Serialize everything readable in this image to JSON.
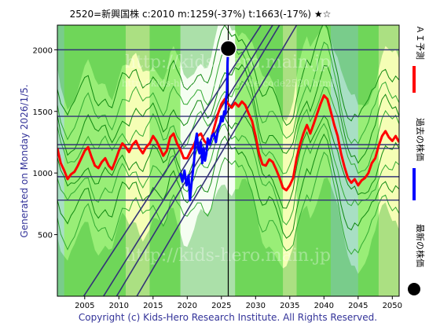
{
  "header": {
    "title": "2520=新興国株    c:2010   m:1259(-37%)   t:1663(-17%)   ★☆"
  },
  "side_caption": "Generated on Monday 2026/1/5.",
  "footer": "Copyright (c) Kids-Hero Research Institute. All Rights Reserved.",
  "watermarks": [
    "http://kids-hero.main.jp",
    "http://kids-hero.main.jp/code/code2520.html",
    "http://kids-hero.main.jp"
  ],
  "legend": [
    {
      "label": "ＡＩ予測",
      "color": "#ff0000",
      "kind": "line"
    },
    {
      "label": "過去の株価",
      "color": "#0000ff",
      "kind": "line"
    },
    {
      "label": "最新の株価",
      "color": "#000000",
      "kind": "dot"
    }
  ],
  "chart_data": {
    "type": "line",
    "x_ticks": [
      2005,
      2010,
      2015,
      2020,
      2025,
      2030,
      2035,
      2040,
      2045,
      2050
    ],
    "y_ticks": [
      500,
      1000,
      1500,
      2000
    ],
    "xlim": [
      2001,
      2051
    ],
    "ylim": [
      0,
      2200
    ],
    "colors": {
      "background": "#99ee77",
      "band_dark": "#22aa22",
      "band_yellow": "#ffffbb",
      "band_teal": "#aaddcc",
      "band_white": "#ffffff",
      "diag_line": "#333377",
      "hline": "#333377"
    },
    "horizontal_lines": [
      2000,
      1460,
      1230,
      1200,
      970,
      780
    ],
    "diagonal_lines": [
      {
        "x1": 2002.5,
        "y1": -200,
        "x2": 2030.8,
        "y2": 2200
      },
      {
        "x1": 2005.5,
        "y1": -200,
        "x2": 2032.5,
        "y2": 2200
      },
      {
        "x1": 2007.5,
        "y1": -200,
        "x2": 2033.5,
        "y2": 2200
      },
      {
        "x1": 2010.5,
        "y1": -200,
        "x2": 2036.0,
        "y2": 2200
      }
    ],
    "vertical_line_x": 2026.0,
    "latest": {
      "x": 2026.0,
      "y": 2010
    },
    "highlight_bands": [
      {
        "from": 2001,
        "to": 2002,
        "kind": "teal"
      },
      {
        "from": 2011,
        "to": 2014.5,
        "kind": "yellow"
      },
      {
        "from": 2019,
        "to": 2027,
        "kind": "white"
      },
      {
        "from": 2034,
        "to": 2036,
        "kind": "yellow"
      },
      {
        "from": 2041,
        "to": 2045,
        "kind": "teal"
      },
      {
        "from": 2048,
        "to": 2051,
        "kind": "yellow"
      }
    ],
    "series": [
      {
        "role": "ai_forecast",
        "color": "#ff0000",
        "x": [
          2001.0,
          2001.5,
          2002.0,
          2002.5,
          2003.0,
          2003.5,
          2004.0,
          2004.5,
          2005.0,
          2005.5,
          2006.0,
          2006.5,
          2007.0,
          2007.5,
          2008.0,
          2008.5,
          2009.0,
          2009.5,
          2010.0,
          2010.5,
          2011.0,
          2011.5,
          2012.0,
          2012.5,
          2013.0,
          2013.5,
          2014.0,
          2014.5,
          2015.0,
          2015.5,
          2016.0,
          2016.5,
          2017.0,
          2017.5,
          2018.0,
          2018.5,
          2019.0,
          2019.5,
          2020.0,
          2020.5,
          2021.0,
          2021.5,
          2022.0,
          2022.5,
          2023.0,
          2023.5,
          2024.0,
          2024.5,
          2025.0,
          2025.5,
          2026.0,
          2026.5,
          2027.0,
          2027.5,
          2028.0,
          2028.5,
          2029.0,
          2029.5,
          2030.0,
          2030.5,
          2031.0,
          2031.5,
          2032.0,
          2032.5,
          2033.0,
          2033.5,
          2034.0,
          2034.5,
          2035.0,
          2035.5,
          2036.0,
          2036.5,
          2037.0,
          2037.5,
          2038.0,
          2038.5,
          2039.0,
          2039.5,
          2040.0,
          2040.5,
          2041.0,
          2041.5,
          2042.0,
          2042.5,
          2043.0,
          2043.5,
          2044.0,
          2044.5,
          2045.0,
          2045.5,
          2046.0,
          2046.5,
          2047.0,
          2047.5,
          2048.0,
          2048.5,
          2049.0,
          2049.5,
          2050.0,
          2050.5,
          2051.0
        ],
        "y": [
          1200,
          1080,
          1020,
          950,
          990,
          1010,
          1060,
          1120,
          1180,
          1210,
          1130,
          1060,
          1040,
          1090,
          1120,
          1060,
          1030,
          1100,
          1180,
          1240,
          1210,
          1170,
          1230,
          1260,
          1200,
          1160,
          1210,
          1240,
          1300,
          1260,
          1200,
          1140,
          1180,
          1290,
          1320,
          1240,
          1190,
          1120,
          1120,
          1180,
          1230,
          1300,
          1320,
          1260,
          1230,
          1280,
          1380,
          1480,
          1560,
          1600,
          1560,
          1530,
          1570,
          1540,
          1580,
          1550,
          1480,
          1420,
          1300,
          1160,
          1070,
          1060,
          1110,
          1090,
          1030,
          960,
          880,
          860,
          900,
          960,
          1120,
          1230,
          1320,
          1390,
          1320,
          1400,
          1480,
          1560,
          1630,
          1600,
          1500,
          1390,
          1300,
          1160,
          1050,
          960,
          920,
          950,
          900,
          940,
          960,
          1000,
          1080,
          1120,
          1220,
          1300,
          1340,
          1290,
          1260,
          1300,
          1250
        ]
      },
      {
        "role": "past_price",
        "color": "#0000ff",
        "x": [
          2019.0,
          2019.3,
          2019.6,
          2019.9,
          2020.2,
          2020.4,
          2020.6,
          2020.8,
          2021.0,
          2021.2,
          2021.4,
          2021.6,
          2021.8,
          2022.0,
          2022.2,
          2022.4,
          2022.6,
          2022.8,
          2023.0,
          2023.3,
          2023.6,
          2023.9,
          2024.2,
          2024.5,
          2024.8,
          2025.0,
          2025.2,
          2025.4,
          2025.6,
          2025.7,
          2025.8,
          2025.9,
          2026.0
        ],
        "y": [
          1000,
          930,
          1020,
          900,
          980,
          780,
          900,
          1000,
          1100,
          1250,
          1320,
          1200,
          1160,
          1250,
          1080,
          1200,
          1100,
          1160,
          1280,
          1230,
          1300,
          1320,
          1250,
          1350,
          1400,
          1460,
          1420,
          1500,
          1480,
          1620,
          1640,
          1900,
          2010
        ]
      }
    ]
  }
}
